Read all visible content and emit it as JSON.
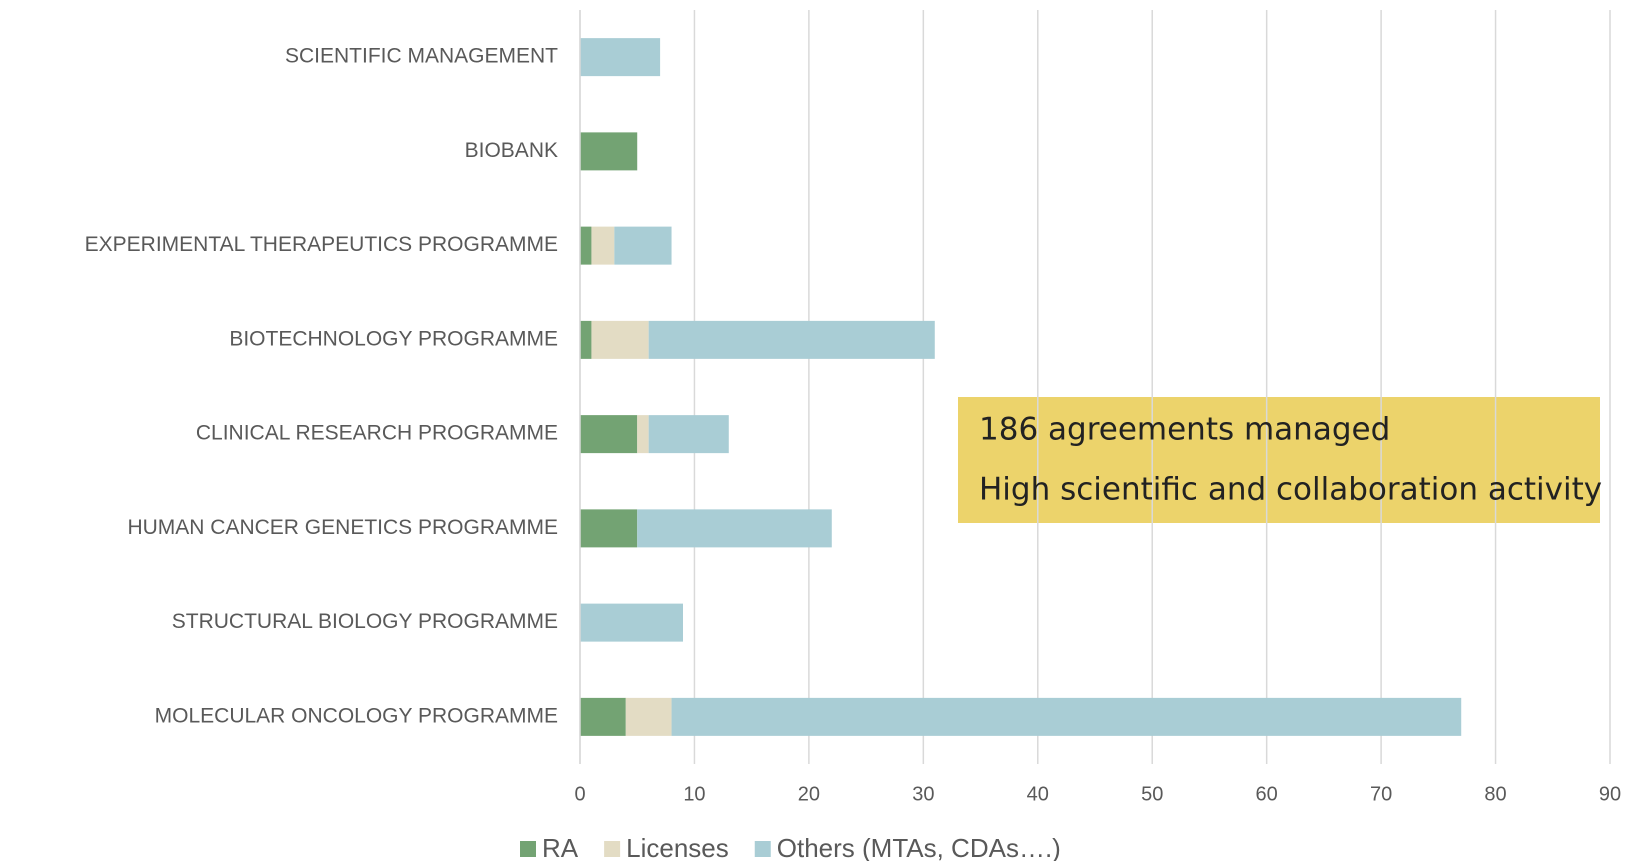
{
  "chart_data": {
    "type": "bar",
    "orientation": "horizontal",
    "stacked": true,
    "categories": [
      "SCIENTIFIC MANAGEMENT",
      "BIOBANK",
      "EXPERIMENTAL THERAPEUTICS PROGRAMME",
      "BIOTECHNOLOGY PROGRAMME",
      "CLINICAL RESEARCH PROGRAMME",
      "HUMAN CANCER GENETICS PROGRAMME",
      "STRUCTURAL BIOLOGY PROGRAMME",
      "MOLECULAR ONCOLOGY PROGRAMME"
    ],
    "series": [
      {
        "name": "RA",
        "color": "#73a373",
        "values": [
          0,
          5,
          1,
          1,
          5,
          5,
          0,
          4
        ]
      },
      {
        "name": "Licenses",
        "color": "#e3dcc4",
        "values": [
          0,
          0,
          2,
          5,
          1,
          0,
          0,
          4
        ]
      },
      {
        "name": "Others (MTAs, CDAs….)",
        "color": "#a9cdd5",
        "values": [
          7,
          0,
          5,
          25,
          7,
          17,
          9,
          69
        ]
      }
    ],
    "xlim": [
      0,
      90
    ],
    "xticks": [
      0,
      10,
      20,
      30,
      40,
      50,
      60,
      70,
      80,
      90
    ],
    "grid": true,
    "legend": "bottom",
    "annotations": [
      "186 agreements managed",
      "High scientific and collaboration activity"
    ]
  }
}
